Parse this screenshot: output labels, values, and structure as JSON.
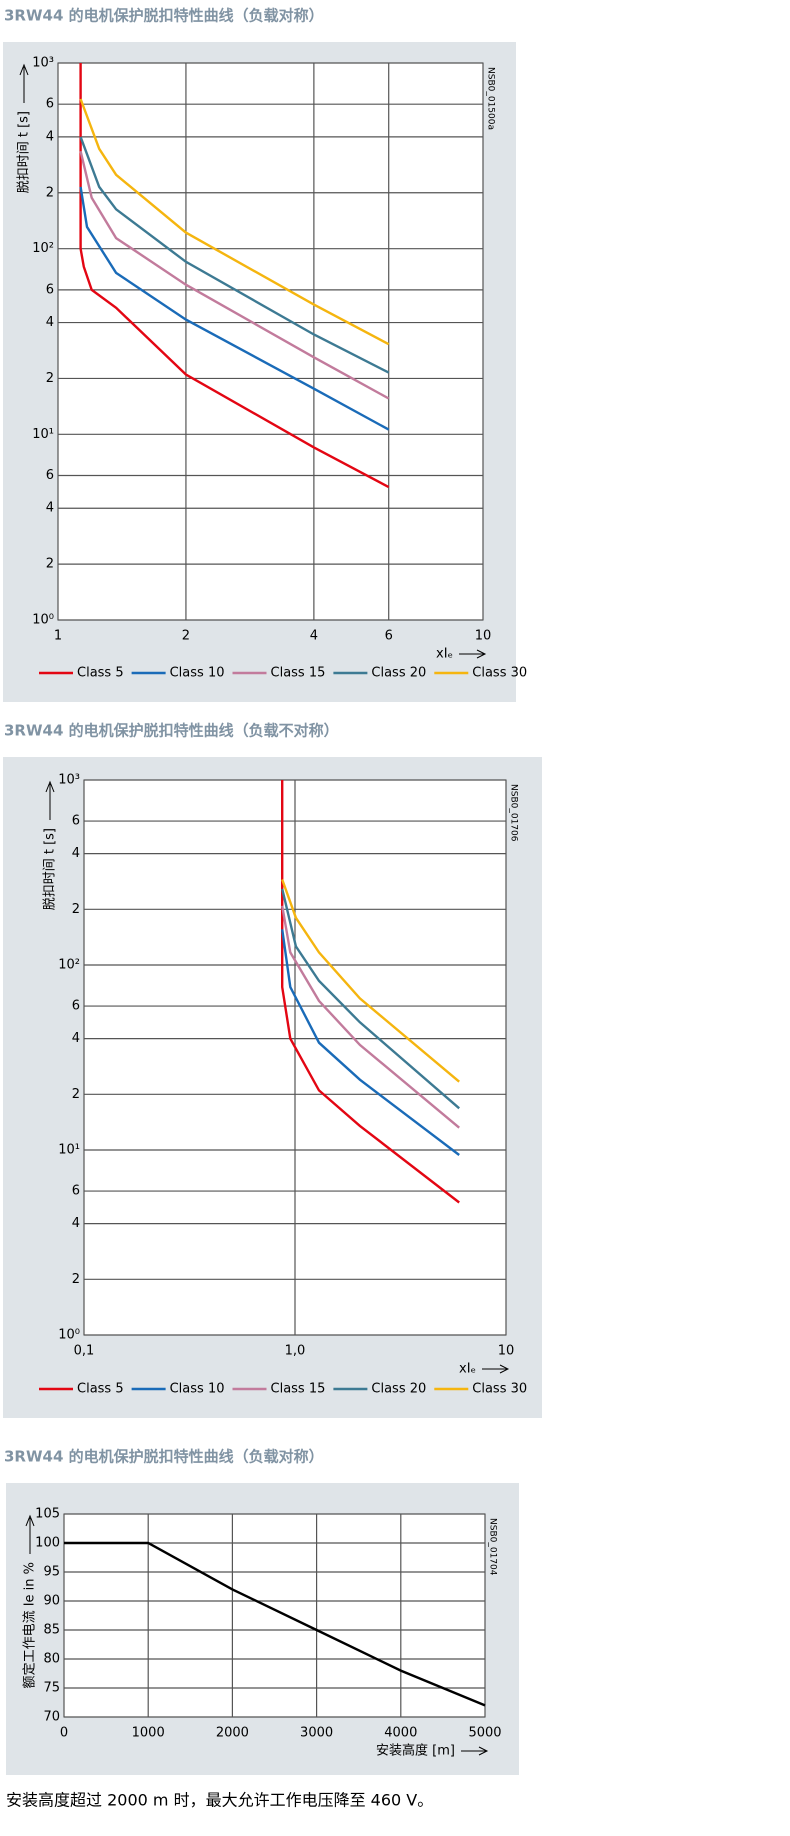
{
  "chart_data": [
    {
      "type": "line",
      "title": "3RW44 的电机保护脱扣特性曲线（负载对称）",
      "y_label": "脱扣时间 t [s]",
      "x_label": "xIₑ",
      "annotation": "NSB0_01500a",
      "log_x": true,
      "log_y": true,
      "grid": true,
      "legend": "bottom",
      "xlim": [
        1,
        10
      ],
      "xticks": [
        1,
        2,
        4,
        6,
        10
      ],
      "ylim": [
        1,
        1000
      ],
      "yticks": [
        {
          "value": 1,
          "label": "10⁰"
        },
        2,
        4,
        6,
        {
          "value": 10,
          "label": "10¹"
        },
        {
          "value": 20,
          "label": "2"
        },
        {
          "value": 40,
          "label": "4"
        },
        {
          "value": 60,
          "label": "6"
        },
        {
          "value": 100,
          "label": "10²"
        },
        {
          "value": 200,
          "label": "2"
        },
        {
          "value": 400,
          "label": "4"
        },
        {
          "value": 600,
          "label": "6"
        },
        {
          "value": 1000,
          "label": "10³"
        }
      ],
      "series": [
        {
          "name": "Class 5",
          "color": "#e30613",
          "x": [
            1.13,
            1.13,
            1.15,
            1.2,
            1.37,
            2,
            4,
            6
          ],
          "values": [
            1000,
            100,
            80,
            60,
            48,
            21,
            8.5,
            5.2
          ]
        },
        {
          "name": "Class 10",
          "color": "#1a6bb8",
          "x": [
            1.13,
            1.17,
            1.37,
            2,
            4,
            6
          ],
          "values": [
            215,
            131,
            74,
            41.5,
            17.6,
            10.6
          ]
        },
        {
          "name": "Class 15",
          "color": "#c27b9c",
          "x": [
            1.13,
            1.2,
            1.37,
            2,
            4,
            6
          ],
          "values": [
            335,
            188,
            114,
            64,
            26,
            15.6
          ]
        },
        {
          "name": "Class 20",
          "color": "#3d7a93",
          "x": [
            1.13,
            1.25,
            1.37,
            2,
            4,
            6
          ],
          "values": [
            400,
            215,
            163,
            85,
            34.5,
            21.5
          ]
        },
        {
          "name": "Class 30",
          "color": "#f5b50f",
          "x": [
            1.13,
            1.25,
            1.37,
            2,
            4,
            6
          ],
          "values": [
            640,
            345,
            250,
            122,
            50,
            30.6
          ]
        }
      ]
    },
    {
      "type": "line",
      "title": "3RW44 的电机保护脱扣特性曲线（负载不对称）",
      "y_label": "脱扣时间 t [s]",
      "x_label": "xIₑ",
      "annotation": "NSB0_01706",
      "log_x": true,
      "log_y": true,
      "grid": true,
      "legend": "bottom",
      "xlim": [
        0.1,
        10
      ],
      "xticks": [
        {
          "value": 0.1,
          "label": "0,1"
        },
        {
          "value": 1,
          "label": "1,0"
        },
        10
      ],
      "ylim": [
        1,
        1000
      ],
      "yticks": [
        {
          "value": 1,
          "label": "10⁰"
        },
        2,
        4,
        6,
        {
          "value": 10,
          "label": "10¹"
        },
        {
          "value": 20,
          "label": "2"
        },
        {
          "value": 40,
          "label": "4"
        },
        {
          "value": 60,
          "label": "6"
        },
        {
          "value": 100,
          "label": "10²"
        },
        {
          "value": 200,
          "label": "2"
        },
        {
          "value": 400,
          "label": "4"
        },
        {
          "value": 600,
          "label": "6"
        },
        {
          "value": 1000,
          "label": "10³"
        }
      ],
      "series": [
        {
          "name": "Class 5",
          "color": "#e30613",
          "x": [
            0.87,
            0.87,
            0.95,
            1.3,
            2.03,
            6
          ],
          "values": [
            1000,
            76,
            40,
            21,
            13.5,
            5.2
          ]
        },
        {
          "name": "Class 10",
          "color": "#1a6bb8",
          "x": [
            0.87,
            0.95,
            1.3,
            2.03,
            6
          ],
          "values": [
            156,
            76,
            38,
            24,
            9.4
          ]
        },
        {
          "name": "Class 15",
          "color": "#c27b9c",
          "x": [
            0.87,
            0.95,
            1.3,
            2.03,
            6
          ],
          "values": [
            209,
            117,
            64,
            37,
            13.2
          ]
        },
        {
          "name": "Class 20",
          "color": "#3d7a93",
          "x": [
            0.87,
            1.01,
            1.3,
            2.03,
            6
          ],
          "values": [
            258,
            126,
            82,
            49,
            16.8
          ]
        },
        {
          "name": "Class 30",
          "color": "#f5b50f",
          "x": [
            0.87,
            1.01,
            1.3,
            2.03,
            6
          ],
          "values": [
            290,
            180,
            117,
            66,
            23.4
          ]
        }
      ]
    },
    {
      "type": "line",
      "title": "3RW44 的电机保护脱扣特性曲线（负载对称）",
      "y_label": "额定工作电流 Ie in %",
      "x_label": "安装高度 [m]",
      "annotation": "NSB0_01704",
      "log_x": false,
      "log_y": false,
      "grid": true,
      "xlim": [
        0,
        5000
      ],
      "xticks": [
        0,
        1000,
        2000,
        3000,
        4000,
        5000
      ],
      "ylim": [
        70,
        105
      ],
      "yticks": [
        70,
        75,
        80,
        85,
        90,
        95,
        100,
        105
      ],
      "series": [
        {
          "color": "#000000",
          "x": [
            0,
            1000,
            2000,
            3000,
            4000,
            5000
          ],
          "values": [
            100,
            100,
            92,
            85,
            78,
            72
          ]
        }
      ],
      "note": "安装高度超过 2000 m 时，最大允许工作电压降至 460 V。"
    }
  ]
}
